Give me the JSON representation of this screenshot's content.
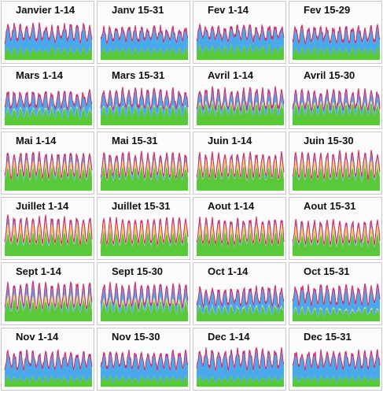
{
  "chart_data": {
    "type": "area",
    "title": "",
    "xlabel": "",
    "ylabel": "",
    "layers": [
      "green",
      "yellow",
      "blue",
      "purple",
      "red"
    ],
    "colors": {
      "green": "#59c93a",
      "yellow": "#e6d36c",
      "blue": "#4aa9ea",
      "purple": "#5a43b8",
      "red": "#e0245e"
    },
    "panels": [
      {
        "label": "Janvier 1-14",
        "yellow": 0.0,
        "green": 0.25,
        "amp": 0.35,
        "base": 0.55
      },
      {
        "label": "Janv 15-31",
        "yellow": 0.0,
        "green": 0.25,
        "amp": 0.3,
        "base": 0.55
      },
      {
        "label": "Fev 1-14",
        "yellow": 0.0,
        "green": 0.3,
        "amp": 0.3,
        "base": 0.6
      },
      {
        "label": "Fev 15-29",
        "yellow": 0.0,
        "green": 0.25,
        "amp": 0.3,
        "base": 0.55
      },
      {
        "label": "Mars 1-14",
        "yellow": 0.1,
        "green": 0.35,
        "amp": 0.35,
        "base": 0.5
      },
      {
        "label": "Mars 15-31",
        "yellow": 0.1,
        "green": 0.4,
        "amp": 0.4,
        "base": 0.5
      },
      {
        "label": "Avril 1-14",
        "yellow": 0.2,
        "green": 0.45,
        "amp": 0.45,
        "base": 0.45
      },
      {
        "label": "Avril 15-30",
        "yellow": 0.2,
        "green": 0.45,
        "amp": 0.4,
        "base": 0.45
      },
      {
        "label": "Mai 1-14",
        "yellow": 0.5,
        "green": 0.5,
        "amp": 0.55,
        "base": 0.35
      },
      {
        "label": "Mai 15-31",
        "yellow": 0.5,
        "green": 0.5,
        "amp": 0.55,
        "base": 0.35
      },
      {
        "label": "Juin 1-14",
        "yellow": 0.6,
        "green": 0.5,
        "amp": 0.55,
        "base": 0.3
      },
      {
        "label": "Juin 15-30",
        "yellow": 0.6,
        "green": 0.5,
        "amp": 0.6,
        "base": 0.3
      },
      {
        "label": "Juillet 1-14",
        "yellow": 0.7,
        "green": 0.5,
        "amp": 0.6,
        "base": 0.3
      },
      {
        "label": "Juillet 15-31",
        "yellow": 0.7,
        "green": 0.5,
        "amp": 0.55,
        "base": 0.3
      },
      {
        "label": "Aout 1-14",
        "yellow": 0.6,
        "green": 0.5,
        "amp": 0.55,
        "base": 0.3
      },
      {
        "label": "Aout 15-31",
        "yellow": 0.6,
        "green": 0.45,
        "amp": 0.5,
        "base": 0.3
      },
      {
        "label": "Sept 1-14",
        "yellow": 0.4,
        "green": 0.45,
        "amp": 0.55,
        "base": 0.35
      },
      {
        "label": "Sept 15-30",
        "yellow": 0.3,
        "green": 0.4,
        "amp": 0.5,
        "base": 0.4
      },
      {
        "label": "Oct 1-14",
        "yellow": 0.1,
        "green": 0.3,
        "amp": 0.4,
        "base": 0.45
      },
      {
        "label": "Oct 15-31",
        "yellow": 0.1,
        "green": 0.25,
        "amp": 0.4,
        "base": 0.5
      },
      {
        "label": "Nov 1-14",
        "yellow": 0.0,
        "green": 0.2,
        "amp": 0.35,
        "base": 0.55
      },
      {
        "label": "Nov 15-30",
        "yellow": 0.0,
        "green": 0.2,
        "amp": 0.35,
        "base": 0.55
      },
      {
        "label": "Dec 1-14",
        "yellow": 0.0,
        "green": 0.2,
        "amp": 0.4,
        "base": 0.55
      },
      {
        "label": "Dec 15-31",
        "yellow": 0.0,
        "green": 0.2,
        "amp": 0.35,
        "base": 0.55
      }
    ]
  }
}
